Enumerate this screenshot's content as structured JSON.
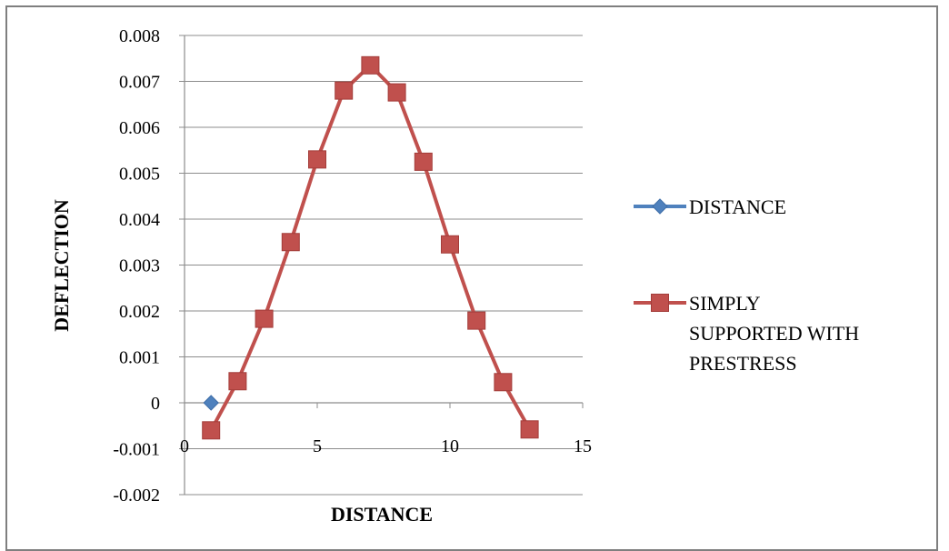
{
  "chart_data": {
    "type": "scatter",
    "xlabel": "DISTANCE",
    "ylabel": "DEFLECTION",
    "xlim": [
      0,
      15
    ],
    "ylim": [
      -0.002,
      0.008
    ],
    "x_ticks": [
      "0",
      "5",
      "10",
      "15"
    ],
    "y_ticks": [
      "-0.002",
      "-0.001",
      "0",
      "0.001",
      "0.002",
      "0.003",
      "0.004",
      "0.005",
      "0.006",
      "0.007",
      "0.008"
    ],
    "grid": "horizontal",
    "legend": "right",
    "series": [
      {
        "name": "DISTANCE",
        "color": "#4f81bd",
        "marker": "diamond",
        "line": true,
        "x": [
          1
        ],
        "y": [
          0
        ]
      },
      {
        "name": "SIMPLY SUPPORTED WITH PRESTRESS",
        "legend_lines": [
          "SIMPLY",
          "SUPPORTED WITH",
          "PRESTRESS"
        ],
        "color": "#c0504d",
        "marker": "square",
        "line": true,
        "x": [
          1,
          2,
          3,
          4,
          5,
          6,
          7,
          8,
          9,
          10,
          11,
          12,
          13
        ],
        "y": [
          -0.0006,
          0.00047,
          0.00183,
          0.0035,
          0.0053,
          0.0068,
          0.00735,
          0.00676,
          0.00525,
          0.00345,
          0.00179,
          0.00045,
          -0.00058
        ]
      }
    ]
  }
}
